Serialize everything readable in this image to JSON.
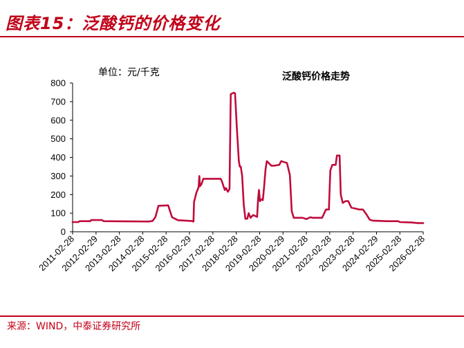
{
  "figure_title": "图表15：泛酸钙的价格变化",
  "source": "来源：WIND，中泰证券研究所",
  "colors": {
    "accent": "#c00018",
    "line": "#c00a3a"
  },
  "chart_data": {
    "type": "line",
    "title": "泛酸钙价格走势",
    "unit_label": "单位：元/千克",
    "xlabel": "",
    "ylabel": "",
    "ylim": [
      0,
      800
    ],
    "yticks": [
      0,
      100,
      200,
      300,
      400,
      500,
      600,
      700,
      800
    ],
    "grid": false,
    "legend": "none",
    "x_tick_labels": [
      "2011-02-28",
      "2012-02-29",
      "2013-02-28",
      "2014-02-28",
      "2015-02-28",
      "2016-02-29",
      "2017-02-28",
      "2018-02-28",
      "2019-02-28",
      "2020-02-29",
      "2021-02-28",
      "2022-02-28",
      "2023-02-28",
      "2024-02-29",
      "2025-02-28",
      "2026-02-28"
    ],
    "series": [
      {
        "values": [
          [
            "2011-02-28",
            52
          ],
          [
            "2011-06-01",
            52
          ],
          [
            "2011-06-15",
            57
          ],
          [
            "2011-12-01",
            57
          ],
          [
            "2011-12-15",
            63
          ],
          [
            "2012-06-01",
            63
          ],
          [
            "2012-07-01",
            57
          ],
          [
            "2013-06-01",
            56
          ],
          [
            "2014-06-01",
            55
          ],
          [
            "2014-08-01",
            58
          ],
          [
            "2014-09-15",
            80
          ],
          [
            "2014-11-01",
            140
          ],
          [
            "2015-04-01",
            142
          ],
          [
            "2015-06-01",
            78
          ],
          [
            "2015-09-01",
            62
          ],
          [
            "2016-04-01",
            58
          ],
          [
            "2016-05-01",
            55
          ],
          [
            "2016-05-10",
            160
          ],
          [
            "2016-06-15",
            210
          ],
          [
            "2016-07-20",
            240
          ],
          [
            "2016-08-01",
            300
          ],
          [
            "2016-08-10",
            245
          ],
          [
            "2016-09-01",
            255
          ],
          [
            "2016-10-01",
            285
          ],
          [
            "2017-07-01",
            285
          ],
          [
            "2017-07-20",
            270
          ],
          [
            "2017-09-01",
            225
          ],
          [
            "2017-09-20",
            235
          ],
          [
            "2017-10-20",
            215
          ],
          [
            "2017-11-15",
            230
          ],
          [
            "2017-12-05",
            740
          ],
          [
            "2018-01-20",
            748
          ],
          [
            "2018-02-10",
            745
          ],
          [
            "2018-03-10",
            560
          ],
          [
            "2018-04-10",
            380
          ],
          [
            "2018-04-25",
            350
          ],
          [
            "2018-05-10",
            350
          ],
          [
            "2018-06-01",
            300
          ],
          [
            "2018-06-25",
            150
          ],
          [
            "2018-07-20",
            70
          ],
          [
            "2018-08-20",
            70
          ],
          [
            "2018-09-10",
            100
          ],
          [
            "2018-10-10",
            75
          ],
          [
            "2018-11-20",
            90
          ],
          [
            "2019-01-20",
            80
          ],
          [
            "2019-02-05",
            180
          ],
          [
            "2019-02-18",
            225
          ],
          [
            "2019-03-05",
            165
          ],
          [
            "2019-04-01",
            175
          ],
          [
            "2019-04-20",
            170
          ],
          [
            "2019-05-10",
            245
          ],
          [
            "2019-06-01",
            335
          ],
          [
            "2019-06-20",
            380
          ],
          [
            "2019-07-20",
            370
          ],
          [
            "2019-09-01",
            355
          ],
          [
            "2019-10-01",
            355
          ],
          [
            "2020-01-01",
            360
          ],
          [
            "2020-02-01",
            380
          ],
          [
            "2020-03-15",
            375
          ],
          [
            "2020-05-01",
            370
          ],
          [
            "2020-06-15",
            305
          ],
          [
            "2020-07-15",
            110
          ],
          [
            "2020-08-15",
            75
          ],
          [
            "2021-01-01",
            75
          ],
          [
            "2021-03-01",
            68
          ],
          [
            "2021-05-01",
            78
          ],
          [
            "2021-06-01",
            75
          ],
          [
            "2021-11-01",
            75
          ],
          [
            "2022-01-01",
            120
          ],
          [
            "2022-02-15",
            120
          ],
          [
            "2022-03-10",
            330
          ],
          [
            "2022-04-10",
            360
          ],
          [
            "2022-06-01",
            360
          ],
          [
            "2022-06-20",
            410
          ],
          [
            "2022-08-01",
            410
          ],
          [
            "2022-08-20",
            200
          ],
          [
            "2022-09-20",
            155
          ],
          [
            "2022-11-01",
            165
          ],
          [
            "2022-12-15",
            165
          ],
          [
            "2023-02-01",
            130
          ],
          [
            "2023-04-01",
            125
          ],
          [
            "2023-06-01",
            120
          ],
          [
            "2023-08-01",
            120
          ],
          [
            "2023-10-01",
            90
          ],
          [
            "2023-11-15",
            65
          ],
          [
            "2024-01-01",
            60
          ],
          [
            "2024-08-01",
            57
          ],
          [
            "2025-02-01",
            57
          ],
          [
            "2025-03-01",
            52
          ],
          [
            "2025-09-01",
            50
          ],
          [
            "2025-12-01",
            47
          ],
          [
            "2026-02-28",
            47
          ]
        ]
      }
    ]
  }
}
